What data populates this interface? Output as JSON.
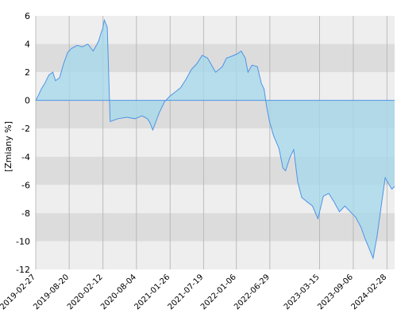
{
  "chart_data": {
    "type": "area",
    "ylabel": "[Zmiany %]",
    "ylim": [
      -12,
      6
    ],
    "y_ticks": [
      "6",
      "4",
      "2",
      "0",
      "-2",
      "-4",
      "-6",
      "-8",
      "-10",
      "-12"
    ],
    "x_range": [
      "2019-02-27",
      "2024-04-08"
    ],
    "x_ticks": [
      "2019-02-27",
      "2019-08-20",
      "2020-02-12",
      "2020-08-04",
      "2021-01-26",
      "2021-07-19",
      "2022-01-06",
      "2022-06-29",
      "2023-03-15",
      "2023-09-06",
      "2024-02-28"
    ],
    "grid": true,
    "colors": {
      "line": "#4d94e6",
      "fill": "#a8d8ea",
      "band_light": "#eeeeee",
      "band_dark": "#dcdcdc",
      "grid": "#b0b0b0"
    },
    "series": [
      {
        "x": [
          "2019-02-27",
          "2019-03-11",
          "2019-03-28",
          "2019-04-15",
          "2019-05-06",
          "2019-05-27",
          "2019-06-10",
          "2019-07-01",
          "2019-07-22",
          "2019-08-12",
          "2019-09-02",
          "2019-09-30",
          "2019-10-28",
          "2019-11-25",
          "2019-12-23",
          "2020-01-20",
          "2020-01-31",
          "2020-02-10",
          "2020-02-19",
          "2020-03-05",
          "2020-03-20",
          "2020-04-30",
          "2020-06-15",
          "2020-07-27",
          "2020-09-02",
          "2020-09-30",
          "2020-10-14",
          "2020-10-28",
          "2020-11-30",
          "2020-12-28",
          "2021-01-25",
          "2021-02-22",
          "2021-03-22",
          "2021-04-19",
          "2021-05-17",
          "2021-06-14",
          "2021-07-12",
          "2021-08-09",
          "2021-09-20",
          "2021-10-25",
          "2021-11-15",
          "2021-12-06",
          "2022-01-10",
          "2022-01-31",
          "2022-02-21",
          "2022-03-07",
          "2022-03-28",
          "2022-04-25",
          "2022-05-16",
          "2022-05-30",
          "2022-06-13",
          "2022-06-27",
          "2022-07-18",
          "2022-08-15",
          "2022-09-05",
          "2022-09-19",
          "2022-10-10",
          "2022-10-31",
          "2022-11-21",
          "2022-12-12",
          "2023-01-09",
          "2023-02-06",
          "2023-03-06",
          "2023-04-03",
          "2023-05-01",
          "2023-05-29",
          "2023-06-26",
          "2023-07-24",
          "2023-08-21",
          "2023-09-18",
          "2023-10-16",
          "2023-11-06",
          "2023-11-27",
          "2023-12-18",
          "2024-01-08",
          "2024-01-29",
          "2024-02-19",
          "2024-03-11",
          "2024-03-25",
          "2024-04-08"
        ],
        "y": [
          0.0,
          0.3,
          0.8,
          1.2,
          1.8,
          2.0,
          1.4,
          1.6,
          2.6,
          3.4,
          3.7,
          3.9,
          3.8,
          4.0,
          3.5,
          4.2,
          4.7,
          5.1,
          5.7,
          5.2,
          -1.5,
          -1.3,
          -1.2,
          -1.3,
          -1.1,
          -1.3,
          -1.6,
          -2.1,
          -0.9,
          -0.1,
          0.3,
          0.6,
          0.9,
          1.5,
          2.2,
          2.6,
          3.2,
          3.0,
          2.0,
          2.4,
          3.0,
          3.1,
          3.3,
          3.5,
          3.0,
          2.0,
          2.5,
          2.4,
          1.2,
          0.8,
          -0.5,
          -1.5,
          -2.5,
          -3.4,
          -4.8,
          -5.0,
          -4.1,
          -3.5,
          -5.8,
          -6.9,
          -7.2,
          -7.5,
          -8.4,
          -6.8,
          -6.6,
          -7.2,
          -7.9,
          -7.5,
          -7.9,
          -8.3,
          -9.0,
          -9.8,
          -10.5,
          -11.2,
          -9.6,
          -7.5,
          -5.5,
          -6.0,
          -6.3,
          -6.1
        ]
      }
    ]
  }
}
